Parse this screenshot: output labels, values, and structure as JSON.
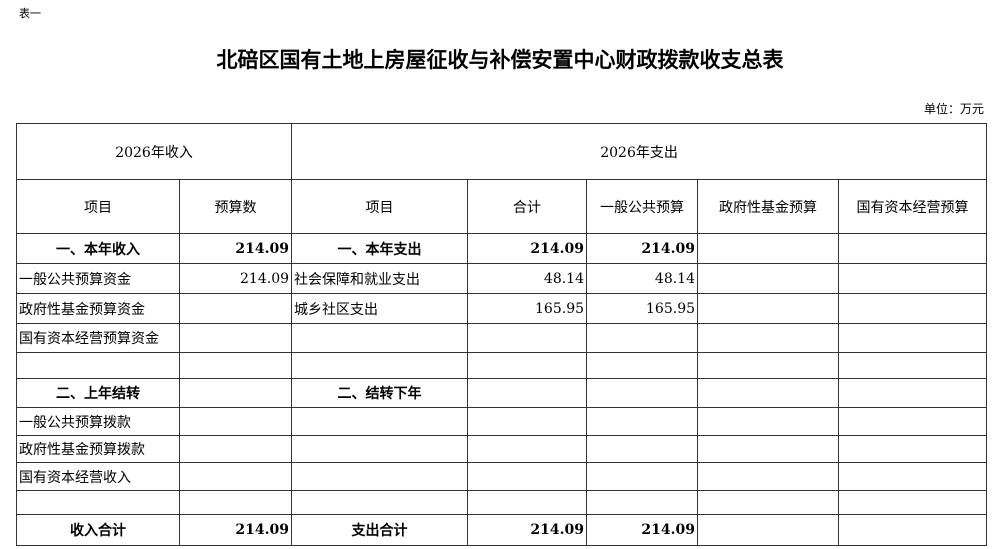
{
  "note": "表一",
  "title": "北碚区国有土地上房屋征收与补偿安置中心财政拨款收支总表",
  "unit": "单位：万元",
  "header": {
    "income": "2026年收入",
    "expense": "2026年支出"
  },
  "columns": [
    "项目",
    "预算数",
    "项目",
    "合计",
    "一般公共预算",
    "政府性基金预算",
    "国有资本经营预算"
  ],
  "rows": [
    [
      "一、本年收入",
      "214.09",
      "一、本年支出",
      "214.09",
      "214.09",
      "",
      ""
    ],
    [
      "一般公共预算资金",
      "214.09",
      "社会保障和就业支出",
      "48.14",
      "48.14",
      "",
      ""
    ],
    [
      "政府性基金预算资金",
      "",
      "城乡社区支出",
      "165.95",
      "165.95",
      "",
      ""
    ],
    [
      "国有资本经营预算资金",
      "",
      "",
      "",
      "",
      "",
      ""
    ],
    [
      "",
      "",
      "",
      "",
      "",
      "",
      ""
    ],
    [
      "二、上年结转",
      "",
      "二、结转下年",
      "",
      "",
      "",
      ""
    ],
    [
      "一般公共预算拨款",
      "",
      "",
      "",
      "",
      "",
      ""
    ],
    [
      "政府性基金预算拨款",
      "",
      "",
      "",
      "",
      "",
      ""
    ],
    [
      "国有资本经营收入",
      "",
      "",
      "",
      "",
      "",
      ""
    ],
    [
      "",
      "",
      "",
      "",
      "",
      "",
      ""
    ],
    [
      "收入合计",
      "214.09",
      "支出合计",
      "214.09",
      "214.09",
      "",
      ""
    ]
  ]
}
